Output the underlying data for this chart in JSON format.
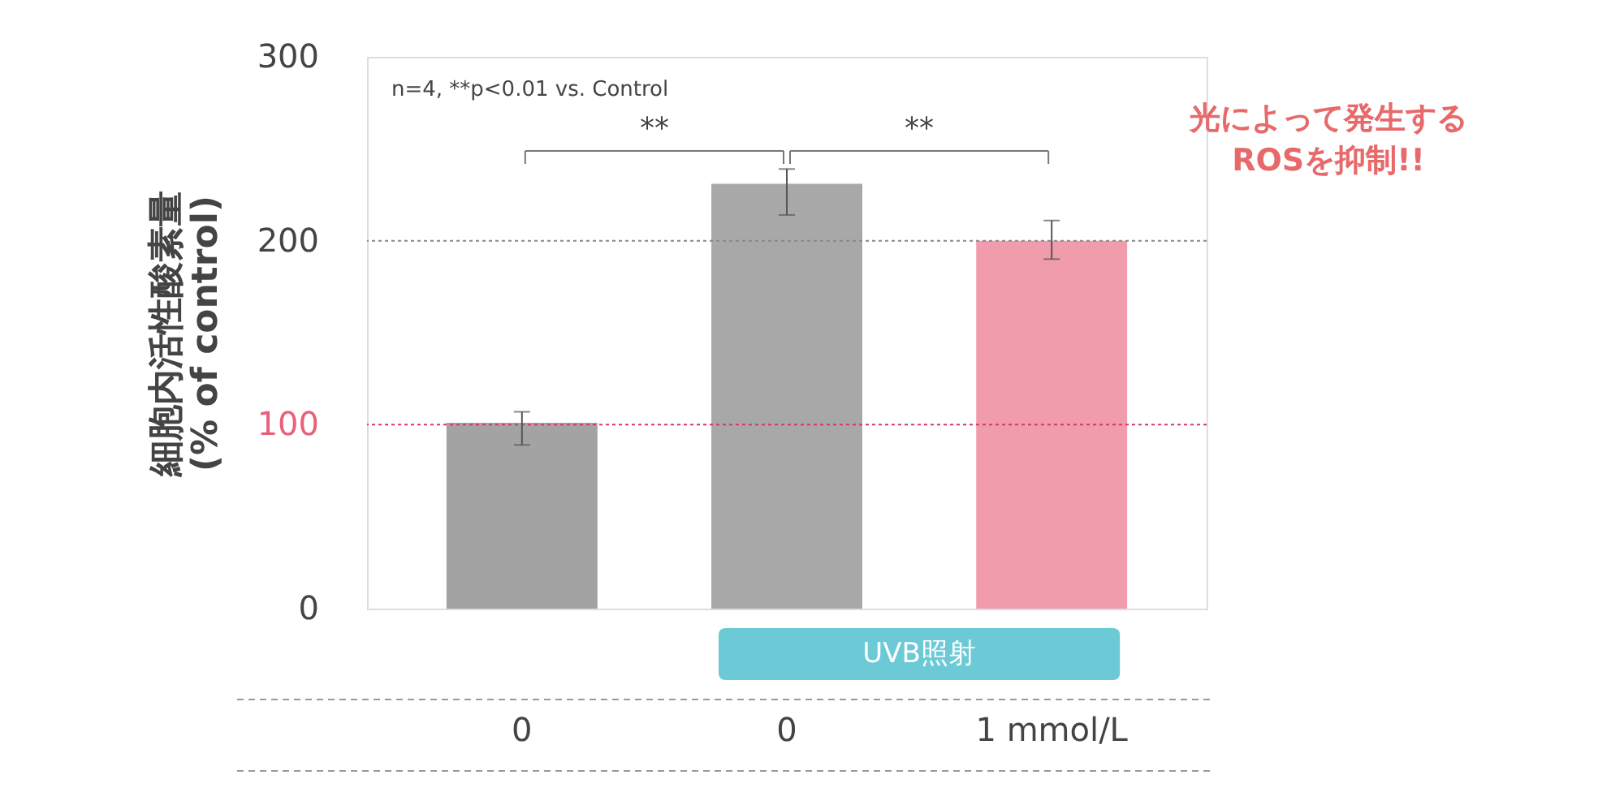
{
  "chart_data": {
    "type": "bar",
    "ylabel": "細胞内活性酸素量\n(% of control)",
    "categories": [
      "0",
      "0",
      "1 mmol/L"
    ],
    "values": [
      101,
      231,
      200
    ],
    "colors": [
      "#a3a3a3",
      "#a8a8a8",
      "#f19cac"
    ],
    "errors": [
      [
        89,
        107
      ],
      [
        214,
        239
      ],
      [
        190,
        211
      ]
    ],
    "ylim": [
      0,
      300
    ],
    "yticks": [
      0,
      100,
      200,
      300
    ],
    "ref_lines": [
      {
        "axis": "y",
        "value": 100,
        "color": "#d6336c",
        "line_style": "dotted"
      },
      {
        "axis": "y",
        "value": 200,
        "color": "#888888",
        "line_style": "dotted"
      }
    ],
    "annotations": [
      "n=4, **p<0.01 vs. Control",
      "**",
      "**",
      "UVB照射",
      "光によって発生する\nROSを抑制!!"
    ],
    "grid": false
  }
}
